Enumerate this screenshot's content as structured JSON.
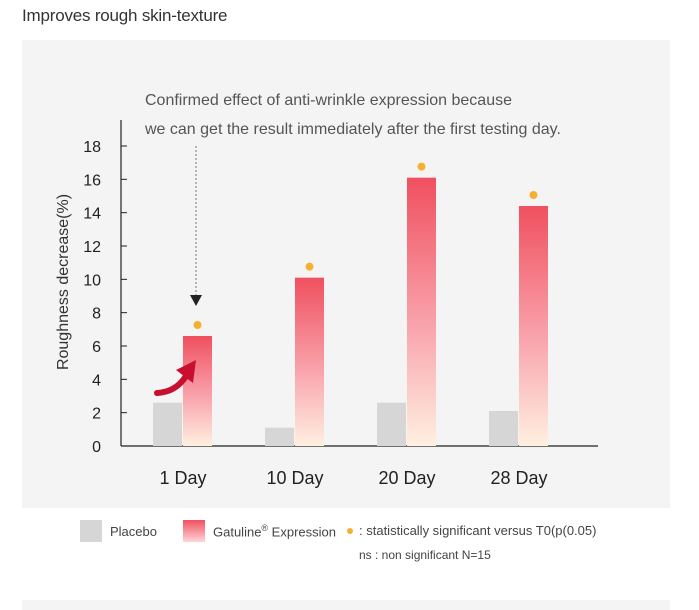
{
  "page": {
    "title": "Improves rough skin-texture"
  },
  "chart_data": {
    "type": "bar",
    "title": "",
    "ylabel": "Roughness decrease(%)",
    "xlabel": "",
    "categories": [
      "1 Day",
      "10 Day",
      "20 Day",
      "28 Day"
    ],
    "series": [
      {
        "name": "Placebo",
        "values": [
          2.6,
          1.1,
          2.6,
          2.1
        ],
        "color": "#d6d6d6"
      },
      {
        "name": "Gatuline® Expression",
        "values": [
          6.6,
          10.1,
          16.1,
          14.4
        ],
        "color": "#f0505f",
        "significant": [
          true,
          true,
          true,
          true
        ]
      }
    ],
    "ylim": [
      0,
      18
    ],
    "yticks": [
      0,
      2,
      4,
      6,
      8,
      10,
      12,
      14,
      16,
      18
    ],
    "grid": false,
    "annotation": {
      "lines": [
        "Confirmed effect of anti-wrinkle expression because",
        "we can get the result immediately after the first testing day."
      ],
      "target_category": "1 Day"
    },
    "significance_color": "#f5b030",
    "arrow_color": "#c8102e"
  },
  "legend": {
    "placebo_label": "Placebo",
    "gatuline_name": "Gatuline",
    "gatuline_sup": "®",
    "gatuline_suffix": " Expression",
    "significance_note": ": statistically significant versus T0(p(0.05)",
    "ns_note": "ns : non significant N=15"
  }
}
